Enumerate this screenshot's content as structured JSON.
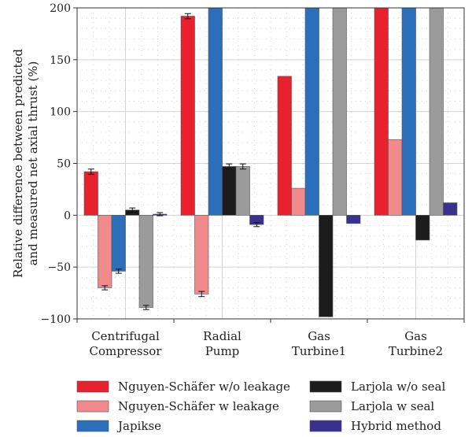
{
  "chart_data": {
    "type": "bar",
    "title": "",
    "xlabel": "",
    "ylabel_lines": [
      "Relative difference between predicted",
      "and measured net axial thrust (%)"
    ],
    "ylim": [
      -100,
      200
    ],
    "yticks": [
      -100,
      -50,
      0,
      50,
      100,
      150,
      200
    ],
    "ytick_labels": [
      "−100",
      "−50",
      "0",
      "50",
      "100",
      "150",
      "200"
    ],
    "grid": true,
    "legend_position": "bottom",
    "categories": [
      [
        "Centrifugal",
        "Compressor"
      ],
      [
        "Radial",
        "Pump"
      ],
      [
        "Gas",
        "Turbine1"
      ],
      [
        "Gas",
        "Turbine2"
      ]
    ],
    "series": [
      {
        "name": "Nguyen-Schäfer w/o leakage",
        "color": "#e8212e",
        "values": [
          42,
          192,
          134,
          200
        ],
        "errors": [
          2.5,
          2.5,
          0,
          0
        ]
      },
      {
        "name": "Nguyen-Schäfer w leakage",
        "color": "#f08a8c",
        "values": [
          -70,
          -76,
          26,
          73
        ],
        "errors": [
          2,
          2.5,
          0,
          0
        ]
      },
      {
        "name": "Japikse",
        "color": "#2b6fbb",
        "values": [
          -54,
          200,
          200,
          200
        ],
        "errors": [
          2,
          0,
          0,
          0
        ]
      },
      {
        "name": "Larjola w/o seal",
        "color": "#1c1c1c",
        "values": [
          5,
          47,
          -98,
          -24
        ],
        "errors": [
          2,
          2.5,
          0,
          0
        ]
      },
      {
        "name": "Larjola w seal",
        "color": "#9b9b9b",
        "values": [
          -89,
          47,
          200,
          200
        ],
        "errors": [
          2,
          2.5,
          0,
          0
        ]
      },
      {
        "name": "Hybrid method",
        "color": "#3b2f8f",
        "values": [
          1,
          -9,
          -8,
          12
        ],
        "errors": [
          1.5,
          2,
          0,
          0
        ]
      }
    ]
  }
}
